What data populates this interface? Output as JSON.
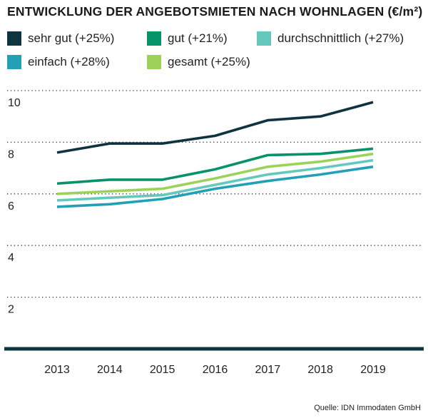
{
  "title": "ENTWICKLUNG DER ANGEBOTSMIETEN NACH WOHNLAGEN (€/m²)",
  "source": "Quelle: IDN Immodaten GmbH",
  "legend": [
    {
      "label": "sehr gut (+25%)",
      "color": "#0e3440"
    },
    {
      "label": "gut (+21%)",
      "color": "#06936a"
    },
    {
      "label": "durchschnittlich (+27%)",
      "color": "#65c8bd"
    },
    {
      "label": "einfach (+28%)",
      "color": "#23a0b6"
    },
    {
      "label": "gesamt (+25%)",
      "color": "#9cd25a"
    }
  ],
  "chart_data": {
    "type": "line",
    "title": "ENTWICKLUNG DER ANGEBOTSMIETEN NACH WOHNLAGEN (€/m²)",
    "xlabel": "",
    "ylabel": "€/m²",
    "x": [
      "2013",
      "2014",
      "2015",
      "2016",
      "2017",
      "2018",
      "2019"
    ],
    "ylim": [
      0,
      10
    ],
    "yticks": [
      2,
      4,
      6,
      8,
      10
    ],
    "grid": true,
    "series": [
      {
        "name": "sehr gut (+25%)",
        "color": "#0e3440",
        "values": [
          7.6,
          7.95,
          7.95,
          8.25,
          8.85,
          9.0,
          9.55
        ]
      },
      {
        "name": "gut (+21%)",
        "color": "#06936a",
        "values": [
          6.4,
          6.55,
          6.55,
          6.95,
          7.5,
          7.55,
          7.75
        ]
      },
      {
        "name": "durchschnittlich (+27%)",
        "color": "#65c8bd",
        "values": [
          5.75,
          5.85,
          5.95,
          6.35,
          6.75,
          7.0,
          7.3
        ]
      },
      {
        "name": "einfach (+28%)",
        "color": "#23a0b6",
        "values": [
          5.5,
          5.6,
          5.8,
          6.2,
          6.5,
          6.75,
          7.05
        ]
      },
      {
        "name": "gesamt (+25%)",
        "color": "#9cd25a",
        "values": [
          6.0,
          6.1,
          6.2,
          6.6,
          7.05,
          7.25,
          7.55
        ]
      }
    ]
  }
}
